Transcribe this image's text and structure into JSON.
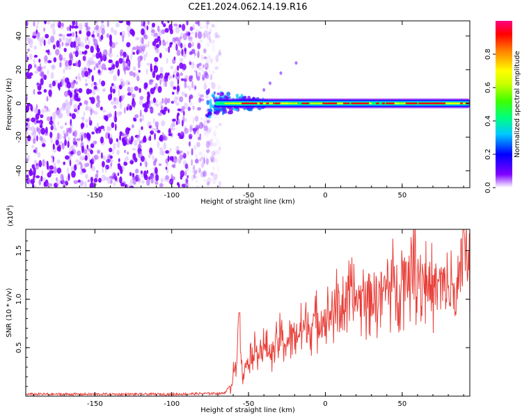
{
  "title": "C2E1.2024.062.14.19.R16",
  "chart_data": [
    {
      "type": "heatmap",
      "name": "spectrogram",
      "xlabel": "Height of straight line (km)",
      "ylabel": "Frequency (Hz)",
      "xlim": [
        -195,
        94
      ],
      "ylim": [
        -50,
        49
      ],
      "x_ticks": [
        -150,
        -100,
        -50,
        0,
        50
      ],
      "y_ticks": [
        -40,
        -20,
        0,
        20,
        40
      ],
      "colorbar": {
        "label": "Normalized spectral amplitude",
        "range": [
          0,
          1
        ],
        "ticks": [
          "0.0",
          "0.2",
          "0.4",
          "0.6",
          "0.8"
        ],
        "colors": [
          "#ffffff",
          "#8000ff",
          "#0000ff",
          "#00c8ff",
          "#00ff80",
          "#40ff00",
          "#c8ff00",
          "#ffff00",
          "#ff8000",
          "#ff0000",
          "#ff0080"
        ]
      },
      "noise_region_x": [
        -195,
        -72
      ],
      "carrier_region_x": [
        -72,
        94
      ],
      "carrier_freq": 0
    },
    {
      "type": "line",
      "name": "snr",
      "xlabel": "Height of straight line (km)",
      "ylabel": "SNR (10 * v/v)",
      "scale_label": "(x10",
      "scale_exp": "4",
      "scale_close": ")",
      "xlim": [
        -195,
        94
      ],
      "ylim": [
        0,
        1.72
      ],
      "x_ticks": [
        -150,
        -100,
        -50,
        0,
        50
      ],
      "y_ticks": [
        "0.5",
        "1.0",
        "1.5"
      ],
      "series": [
        {
          "name": "SNR",
          "color": "#e8403a",
          "keypoints": [
            [
              -195,
              0.02
            ],
            [
              -150,
              0.02
            ],
            [
              -100,
              0.02
            ],
            [
              -66,
              0.03
            ],
            [
              -62,
              0.1
            ],
            [
              -58,
              0.35
            ],
            [
              -56,
              0.86
            ],
            [
              -54,
              0.2
            ],
            [
              -50,
              0.4
            ],
            [
              -45,
              0.48
            ],
            [
              -40,
              0.5
            ],
            [
              -35,
              0.45
            ],
            [
              -30,
              0.6
            ],
            [
              -25,
              0.55
            ],
            [
              -20,
              0.65
            ],
            [
              -15,
              0.68
            ],
            [
              -10,
              0.72
            ],
            [
              -5,
              0.78
            ],
            [
              0,
              0.8
            ],
            [
              5,
              0.9
            ],
            [
              10,
              0.95
            ],
            [
              15,
              0.98
            ],
            [
              20,
              1.0
            ],
            [
              25,
              1.02
            ],
            [
              30,
              1.05
            ],
            [
              35,
              1.05
            ],
            [
              40,
              1.12
            ],
            [
              45,
              1.15
            ],
            [
              50,
              1.2
            ],
            [
              55,
              1.35
            ],
            [
              60,
              1.3
            ],
            [
              65,
              1.2
            ],
            [
              70,
              1.1
            ],
            [
              75,
              1.15
            ],
            [
              80,
              1.1
            ],
            [
              85,
              1.05
            ],
            [
              89,
              1.2
            ],
            [
              90,
              1.72
            ],
            [
              92,
              1.3
            ],
            [
              94,
              1.25
            ]
          ]
        }
      ]
    }
  ]
}
